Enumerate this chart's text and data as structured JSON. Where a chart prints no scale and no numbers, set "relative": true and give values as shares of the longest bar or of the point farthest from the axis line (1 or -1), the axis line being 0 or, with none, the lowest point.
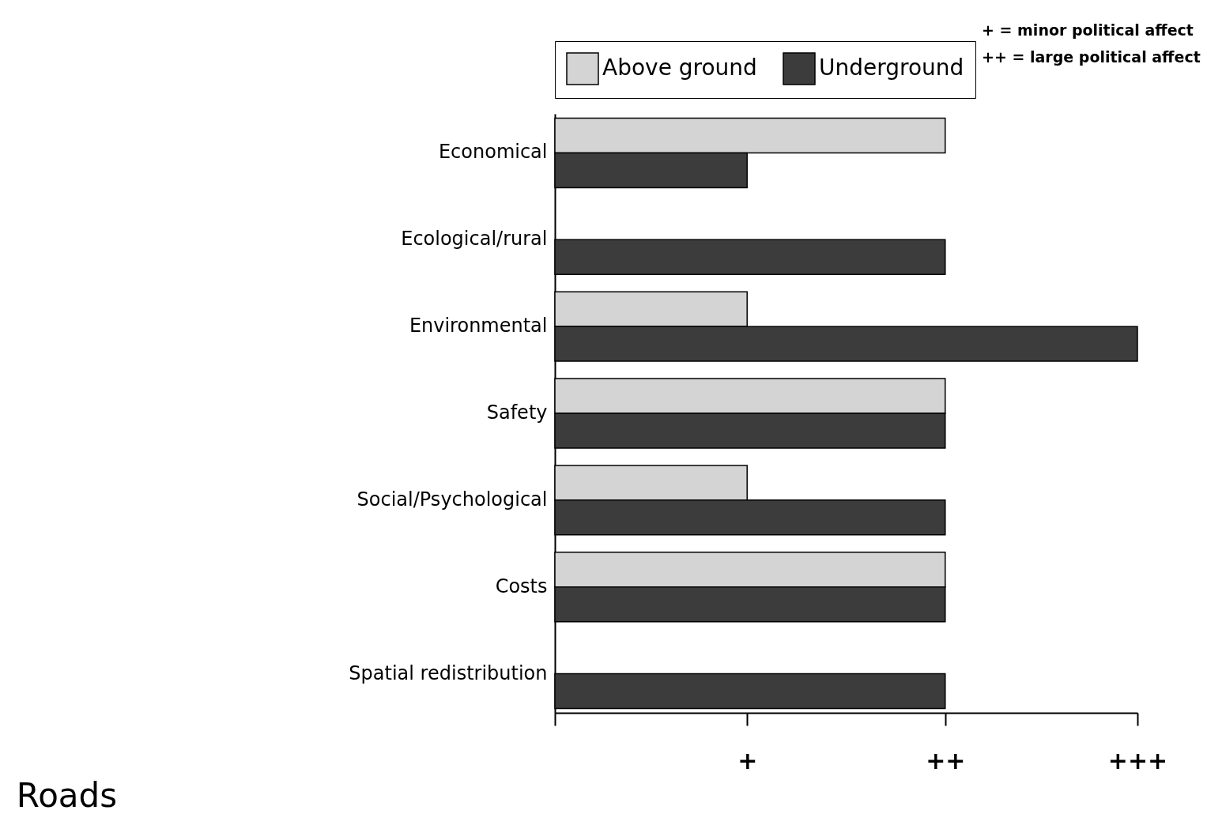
{
  "chart_data": {
    "type": "bar",
    "orientation": "horizontal",
    "title": "Roads",
    "relative": true,
    "categories": [
      "Economical",
      "Ecological/rural",
      "Environmental",
      "Safety",
      "Social/Psychological",
      "Costs",
      "Spatial redistribution"
    ],
    "series": [
      {
        "name": "Above ground",
        "color": "#d4d4d4",
        "values": [
          0.67,
          null,
          0.33,
          0.67,
          0.33,
          0.67,
          null
        ]
      },
      {
        "name": "Underground",
        "color": "#3c3c3c",
        "values": [
          0.33,
          0.67,
          1,
          0.67,
          0.67,
          0.67,
          0.67
        ]
      }
    ],
    "annotations": [
      {
        "text": "+",
        "x": 0.33
      },
      {
        "text": "++",
        "x": 0.67
      },
      {
        "text": "+++",
        "x": 1
      },
      "+    = minor political affect",
      "++ = large political affect"
    ],
    "legend": "top",
    "grid": false
  }
}
